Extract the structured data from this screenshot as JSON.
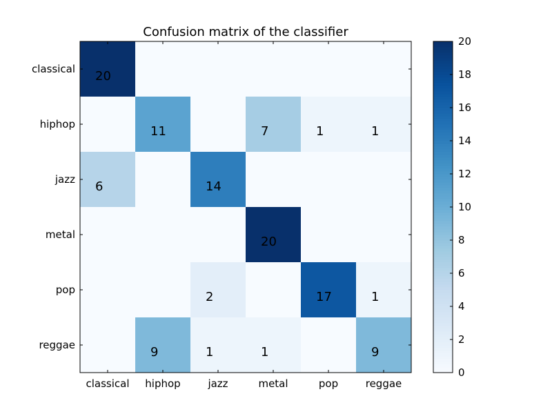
{
  "chart_data": {
    "type": "heatmap",
    "title": "Confusion matrix of the classifier",
    "xlabel": "",
    "ylabel": "",
    "x_categories": [
      "classical",
      "hiphop",
      "jazz",
      "metal",
      "pop",
      "reggae"
    ],
    "y_categories": [
      "classical",
      "hiphop",
      "jazz",
      "metal",
      "pop",
      "reggae"
    ],
    "values": [
      [
        20,
        0,
        0,
        0,
        0,
        0
      ],
      [
        0,
        11,
        0,
        7,
        1,
        1
      ],
      [
        6,
        0,
        14,
        0,
        0,
        0
      ],
      [
        0,
        0,
        0,
        20,
        0,
        0
      ],
      [
        0,
        0,
        2,
        0,
        17,
        1
      ],
      [
        0,
        9,
        1,
        1,
        0,
        9
      ]
    ],
    "colormap": "Blues",
    "color_range": [
      0,
      20
    ],
    "colorbar_ticks": [
      "0",
      "2",
      "4",
      "6",
      "8",
      "10",
      "12",
      "14",
      "16",
      "18",
      "20"
    ],
    "show_zero_labels": false,
    "grid": false,
    "legend": "colorbar-right"
  }
}
